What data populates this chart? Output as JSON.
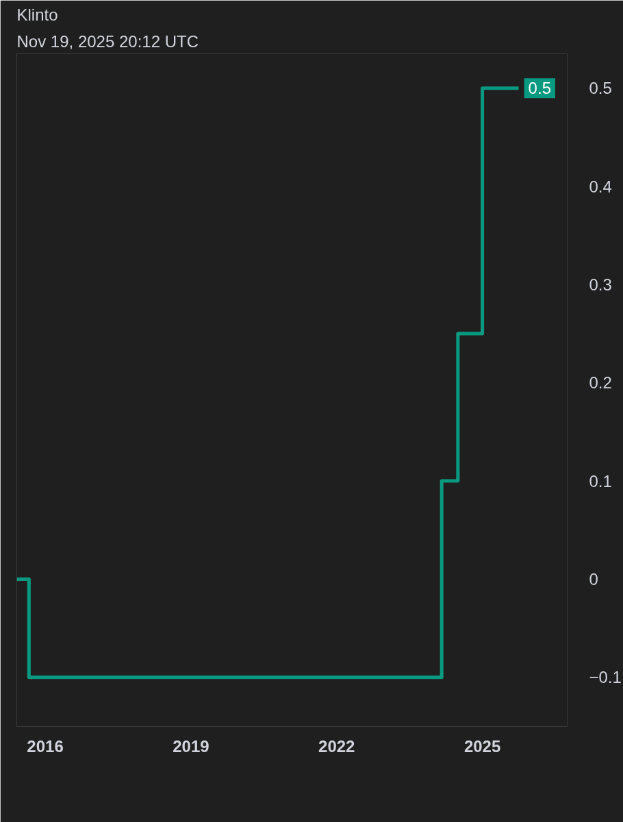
{
  "chart_data": {
    "type": "step",
    "title": "Klinto",
    "subtitle": "Nov 19, 2025 20:12 UTC",
    "x": [
      "2015-06",
      "2015-09",
      "2024-03",
      "2024-07",
      "2025-01",
      "2025-10"
    ],
    "series": [
      {
        "color": "#089981",
        "values": [
          0,
          -0.1,
          0.1,
          0.25,
          0.5,
          0.5
        ]
      }
    ],
    "xlim": [
      "2015-06",
      "2026-10"
    ],
    "xticks": [
      {
        "value": "2016",
        "label": "2016"
      },
      {
        "value": "2019",
        "label": "2019"
      },
      {
        "value": "2022",
        "label": "2022"
      },
      {
        "value": "2025",
        "label": "2025"
      }
    ],
    "ylim": [
      -0.15,
      0.535
    ],
    "yticks": [
      -0.1,
      0,
      0.1,
      0.2,
      0.3,
      0.4,
      0.5
    ],
    "annotations": [
      {
        "text": "0.5",
        "x": "2025-10",
        "y": 0.5
      }
    ],
    "line_style": "solid",
    "marker": "none"
  }
}
